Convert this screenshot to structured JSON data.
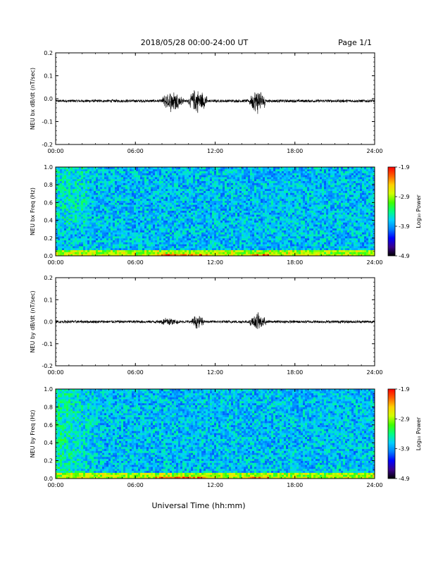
{
  "header": {
    "title": "2018/05/28  00:00-24:00 UT",
    "page_label": "Page 1/1"
  },
  "xlabel": "Universal Time (hh:mm)",
  "colors": {
    "trace": "#000000",
    "frame": "#000000",
    "colormap": [
      "#000000",
      "#3a008c",
      "#0000ff",
      "#0080ff",
      "#00d0ff",
      "#00ff80",
      "#40ff00",
      "#d0ff00",
      "#ffd000",
      "#ff6000",
      "#ff0000"
    ]
  },
  "chart_data": [
    {
      "type": "line",
      "ylabel": "NEU bx dB/dt (nT/sec)",
      "xlim": [
        0,
        24
      ],
      "ylim": [
        -0.2,
        0.2
      ],
      "x_ticks": [
        "00:00",
        "06:00",
        "12:00",
        "18:00",
        "24:00"
      ],
      "y_ticks": [
        "0.2",
        "0.1",
        "0.0",
        "-0.1",
        "-0.2"
      ],
      "y_tick_values": [
        0.2,
        0.1,
        0.0,
        -0.1,
        -0.2
      ],
      "baseline": -0.01,
      "bursts": [
        {
          "start_hour": 8.0,
          "end_hour": 9.6,
          "peak": 0.06
        },
        {
          "start_hour": 10.0,
          "end_hour": 11.4,
          "peak": 0.07
        },
        {
          "start_hour": 14.6,
          "end_hour": 15.8,
          "peak": 0.07
        }
      ]
    },
    {
      "type": "heatmap",
      "ylabel": "NEU bx Freq (Hz)",
      "xlim": [
        0,
        24
      ],
      "ylim": [
        0,
        1.0
      ],
      "x_ticks": [
        "00:00",
        "06:00",
        "12:00",
        "18:00",
        "24:00"
      ],
      "y_ticks": [
        "1.0",
        "0.8",
        "0.6",
        "0.4",
        "0.2",
        "0.0"
      ],
      "y_tick_values": [
        1.0,
        0.8,
        0.6,
        0.4,
        0.2,
        0.0
      ],
      "colorbar": {
        "label": "Log₁₀ Power",
        "ticks": [
          "-1.9",
          "-2.9",
          "-3.9",
          "-4.9"
        ],
        "tick_values": [
          -1.9,
          -2.9,
          -3.9,
          -4.9
        ],
        "range": [
          -4.9,
          -1.9
        ]
      }
    },
    {
      "type": "line",
      "ylabel": "NEU by dB/dt (nT/sec)",
      "xlim": [
        0,
        24
      ],
      "ylim": [
        -0.2,
        0.2
      ],
      "x_ticks": [
        "00:00",
        "06:00",
        "12:00",
        "18:00",
        "24:00"
      ],
      "y_ticks": [
        "0.2",
        "0.1",
        "0.0",
        "-0.1",
        "-0.2"
      ],
      "y_tick_values": [
        0.2,
        0.1,
        0.0,
        -0.1,
        -0.2
      ],
      "baseline": 0.0,
      "bursts": [
        {
          "start_hour": 7.8,
          "end_hour": 9.2,
          "peak": 0.03
        },
        {
          "start_hour": 10.2,
          "end_hour": 11.2,
          "peak": 0.04
        },
        {
          "start_hour": 14.6,
          "end_hour": 15.8,
          "peak": 0.05
        }
      ]
    },
    {
      "type": "heatmap",
      "ylabel": "NEU by Freq (Hz)",
      "xlim": [
        0,
        24
      ],
      "ylim": [
        0,
        1.0
      ],
      "x_ticks": [
        "00:00",
        "06:00",
        "12:00",
        "18:00",
        "24:00"
      ],
      "y_ticks": [
        "1.0",
        "0.8",
        "0.6",
        "0.4",
        "0.2",
        "0.0"
      ],
      "y_tick_values": [
        1.0,
        0.8,
        0.6,
        0.4,
        0.2,
        0.0
      ],
      "colorbar": {
        "label": "Log₁₀ Power",
        "ticks": [
          "-1.9",
          "-2.9",
          "-3.9",
          "-4.9"
        ],
        "tick_values": [
          -1.9,
          -2.9,
          -3.9,
          -4.9
        ],
        "range": [
          -4.9,
          -1.9
        ]
      }
    }
  ]
}
